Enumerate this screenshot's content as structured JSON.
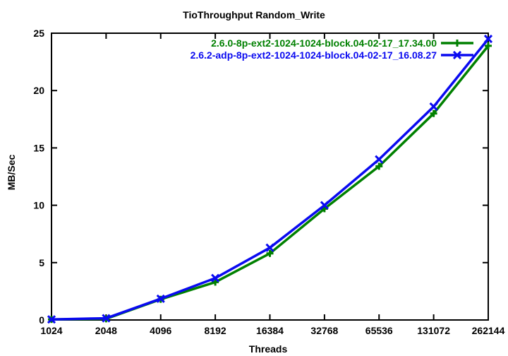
{
  "colors": {
    "background": "#ffffff",
    "axis": "#000000",
    "text": "#000000",
    "series_green": "#008000",
    "series_blue": "#0a0af0"
  },
  "chart_data": {
    "type": "line",
    "title": "TioThroughput Random_Write",
    "xlabel": "Threads",
    "ylabel": "MB/Sec",
    "x_tick_labels": [
      "1024",
      "2048",
      "4096",
      "8192",
      "16384",
      "32768",
      "65536",
      "131072",
      "262144"
    ],
    "x_scale": "log2-equally-spaced-ticks",
    "y_ticks": [
      0,
      5,
      10,
      15,
      20,
      25
    ],
    "ylim": [
      0,
      25
    ],
    "grid": false,
    "legend_position": "top-right-inside",
    "series": [
      {
        "name": "2.6.0-8p-ext2-1024-1024-block.04-02-17_17.34.00",
        "color": "#008000",
        "marker": "plus",
        "values": [
          0.05,
          0.1,
          1.8,
          3.3,
          5.8,
          9.7,
          13.4,
          18.0,
          23.9
        ]
      },
      {
        "name": "2.6.2-adp-8p-ext2-1024-1024-block.04-02-17_16.08.27",
        "color": "#0a0af0",
        "marker": "x",
        "values": [
          0.05,
          0.15,
          1.85,
          3.65,
          6.3,
          10.0,
          14.0,
          18.6,
          24.5
        ]
      }
    ]
  }
}
